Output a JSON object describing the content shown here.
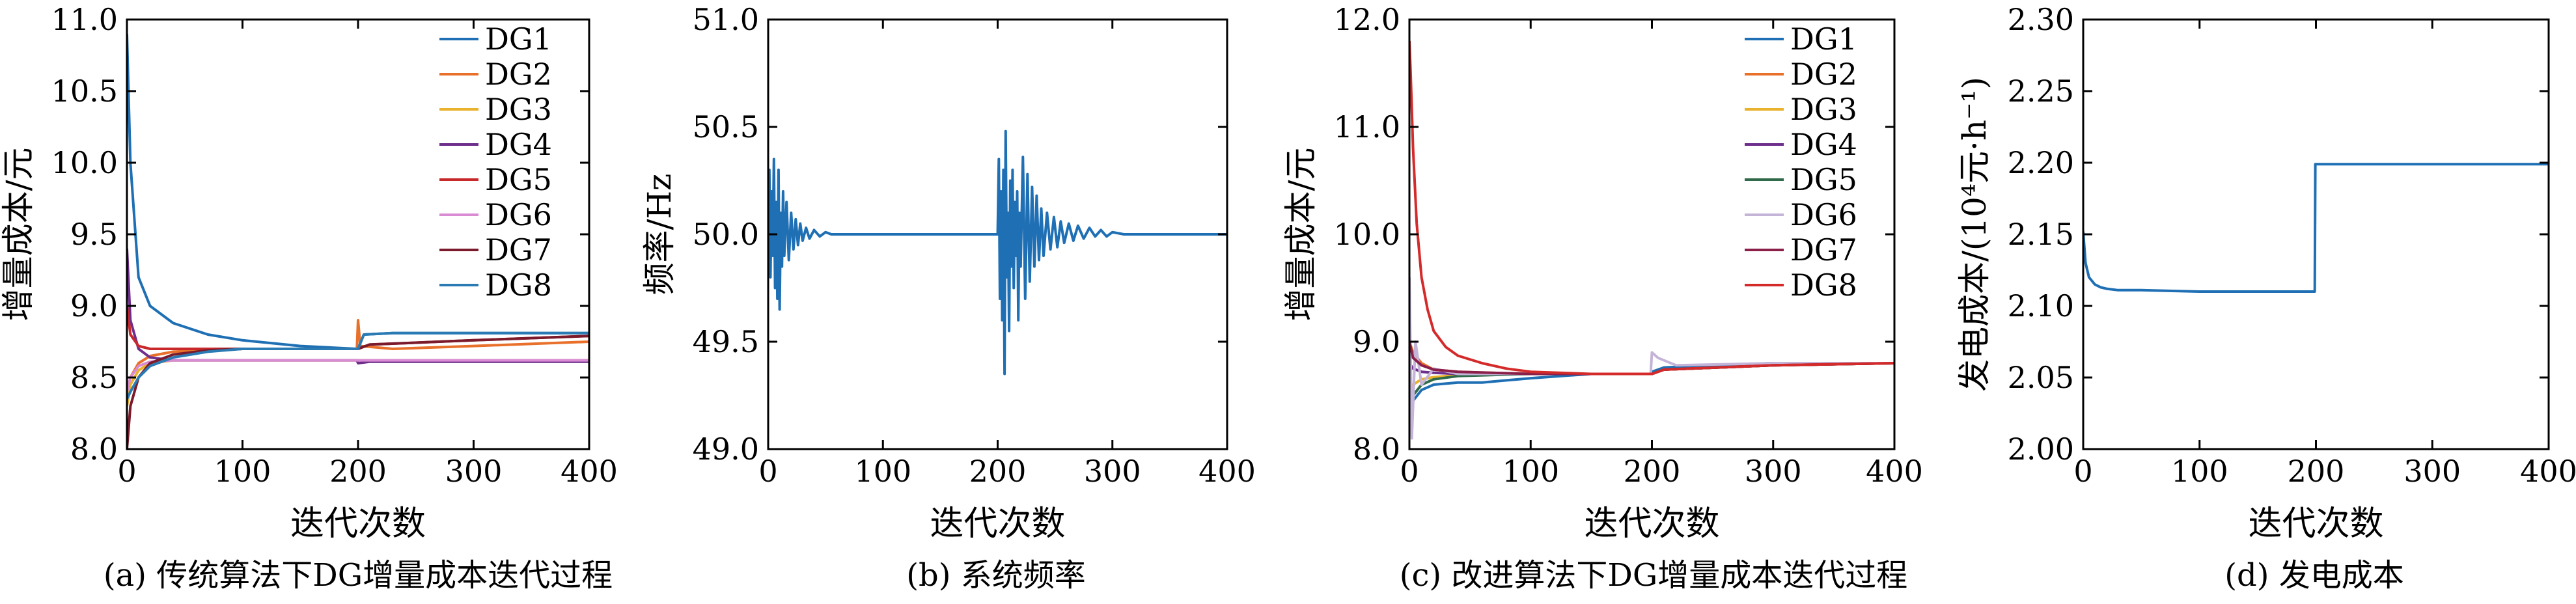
{
  "chart_data": [
    {
      "type": "line",
      "caption": "(a) 传统算法下DG增量成本迭代过程",
      "xlabel": "迭代次数",
      "ylabel": "增量成本/元",
      "xlim": [
        0,
        400
      ],
      "ylim": [
        8.0,
        11.0
      ],
      "xticks": [
        "0",
        "100",
        "200",
        "300",
        "400"
      ],
      "yticks": [
        "8.0",
        "8.5",
        "9.0",
        "9.5",
        "10.0",
        "10.5",
        "11.0"
      ],
      "legend_position": "top-right",
      "series": [
        {
          "name": "DG1",
          "color": "#1f6fb4",
          "x": [
            0,
            3,
            10,
            20,
            40,
            70,
            100,
            150,
            199,
            200,
            205,
            230,
            300,
            400
          ],
          "y": [
            10.9,
            10.0,
            9.2,
            9.0,
            8.88,
            8.8,
            8.76,
            8.72,
            8.7,
            8.7,
            8.8,
            8.81,
            8.81,
            8.81
          ]
        },
        {
          "name": "DG2",
          "color": "#e8702a",
          "x": [
            0,
            3,
            10,
            20,
            40,
            70,
            100,
            150,
            199,
            200,
            202,
            230,
            300,
            400
          ],
          "y": [
            8.4,
            8.5,
            8.6,
            8.65,
            8.68,
            8.69,
            8.7,
            8.7,
            8.7,
            8.9,
            8.72,
            8.7,
            8.72,
            8.75
          ]
        },
        {
          "name": "DG3",
          "color": "#e9b22c",
          "x": [
            0,
            3,
            10,
            20,
            40,
            100,
            199,
            200,
            210,
            300,
            400
          ],
          "y": [
            8.3,
            8.45,
            8.55,
            8.6,
            8.62,
            8.62,
            8.62,
            8.62,
            8.62,
            8.62,
            8.62
          ]
        },
        {
          "name": "DG4",
          "color": "#6e2f8c",
          "x": [
            0,
            3,
            10,
            20,
            40,
            100,
            199,
            200,
            210,
            300,
            400
          ],
          "y": [
            9.4,
            8.9,
            8.7,
            8.64,
            8.62,
            8.62,
            8.62,
            8.6,
            8.61,
            8.61,
            8.61
          ]
        },
        {
          "name": "DG5",
          "color": "#c8282a",
          "x": [
            0,
            3,
            10,
            20,
            40,
            70,
            100,
            150,
            199,
            200,
            210,
            300,
            400
          ],
          "y": [
            9.0,
            8.8,
            8.72,
            8.7,
            8.7,
            8.7,
            8.7,
            8.7,
            8.7,
            8.7,
            8.73,
            8.76,
            8.79
          ]
        },
        {
          "name": "DG6",
          "color": "#d98bd3",
          "x": [
            0,
            3,
            10,
            20,
            40,
            100,
            199,
            200,
            210,
            300,
            400
          ],
          "y": [
            8.4,
            8.5,
            8.58,
            8.61,
            8.62,
            8.62,
            8.62,
            8.62,
            8.62,
            8.62,
            8.62
          ]
        },
        {
          "name": "DG7",
          "color": "#7a1a2a",
          "x": [
            0,
            3,
            10,
            20,
            40,
            70,
            100,
            150,
            199,
            200,
            210,
            300,
            400
          ],
          "y": [
            8.0,
            8.3,
            8.5,
            8.6,
            8.66,
            8.69,
            8.7,
            8.7,
            8.7,
            8.7,
            8.73,
            8.76,
            8.79
          ]
        },
        {
          "name": "DG8",
          "color": "#2a7ab4",
          "x": [
            0,
            3,
            10,
            20,
            40,
            70,
            100,
            150,
            199,
            200,
            205,
            230,
            300,
            400
          ],
          "y": [
            8.35,
            8.4,
            8.5,
            8.58,
            8.64,
            8.68,
            8.7,
            8.7,
            8.7,
            8.7,
            8.8,
            8.81,
            8.81,
            8.81
          ]
        }
      ]
    },
    {
      "type": "line",
      "caption": "(b) 系统频率",
      "xlabel": "迭代次数",
      "ylabel": "频率/Hz",
      "xlim": [
        0,
        400
      ],
      "ylim": [
        49.0,
        51.0
      ],
      "xticks": [
        "0",
        "100",
        "200",
        "300",
        "400"
      ],
      "yticks": [
        "49.0",
        "49.5",
        "50.0",
        "50.5",
        "51.0"
      ],
      "series": [
        {
          "color": "#1f6fb4",
          "x": [
            0,
            1,
            2,
            3,
            4,
            5,
            6,
            7,
            8,
            9,
            10,
            11,
            12,
            13,
            14,
            16,
            18,
            20,
            22,
            24,
            26,
            28,
            30,
            33,
            36,
            40,
            45,
            50,
            55,
            60,
            80,
            100,
            150,
            199,
            200,
            201,
            202,
            203,
            204,
            205,
            206,
            207,
            208,
            209,
            210,
            211,
            212,
            213,
            214,
            215,
            216,
            217,
            218,
            219,
            220,
            222,
            224,
            226,
            228,
            230,
            232,
            234,
            236,
            238,
            240,
            243,
            246,
            249,
            252,
            255,
            258,
            262,
            266,
            270,
            275,
            280,
            285,
            290,
            295,
            300,
            310,
            320,
            330,
            350,
            400
          ],
          "y": [
            50.0,
            50.3,
            49.8,
            50.2,
            49.9,
            50.35,
            49.75,
            50.15,
            49.7,
            50.3,
            49.65,
            50.1,
            49.85,
            50.2,
            49.9,
            50.15,
            49.88,
            50.1,
            49.93,
            50.07,
            49.95,
            50.05,
            49.97,
            50.03,
            49.98,
            50.02,
            49.99,
            50.01,
            50.0,
            50.0,
            50.0,
            50.0,
            50.0,
            50.0,
            50.0,
            50.35,
            49.7,
            50.2,
            49.6,
            50.3,
            49.35,
            50.48,
            49.8,
            50.1,
            49.55,
            50.25,
            49.85,
            50.3,
            49.75,
            50.15,
            49.9,
            50.2,
            49.6,
            50.1,
            49.85,
            50.36,
            49.7,
            50.28,
            49.78,
            50.22,
            49.85,
            50.18,
            49.88,
            50.12,
            49.9,
            50.1,
            49.93,
            50.08,
            49.94,
            50.06,
            49.96,
            50.05,
            49.97,
            50.04,
            49.98,
            50.03,
            49.99,
            50.02,
            49.99,
            50.01,
            50.0,
            50.0,
            50.0,
            50.0,
            50.0
          ]
        }
      ]
    },
    {
      "type": "line",
      "caption": "(c) 改进算法下DG增量成本迭代过程",
      "xlabel": "迭代次数",
      "ylabel": "增量成本/元",
      "xlim": [
        0,
        400
      ],
      "ylim": [
        8.0,
        12.0
      ],
      "xticks": [
        "0",
        "100",
        "200",
        "300",
        "400"
      ],
      "yticks": [
        "8.0",
        "9.0",
        "10.0",
        "11.0",
        "12.0"
      ],
      "legend_position": "top-right",
      "series": [
        {
          "name": "DG1",
          "color": "#1f6fb4",
          "x": [
            0,
            3,
            10,
            20,
            40,
            60,
            80,
            100,
            150,
            199,
            200,
            210,
            250,
            300,
            350,
            400
          ],
          "y": [
            8.3,
            8.45,
            8.55,
            8.6,
            8.62,
            8.62,
            8.64,
            8.66,
            8.7,
            8.7,
            8.72,
            8.76,
            8.78,
            8.8,
            8.8,
            8.8
          ]
        },
        {
          "name": "DG2",
          "color": "#e8702a",
          "x": [
            0,
            3,
            10,
            20,
            40,
            100,
            199,
            200,
            210,
            300,
            400
          ],
          "y": [
            9.0,
            8.9,
            8.8,
            8.74,
            8.72,
            8.7,
            8.7,
            8.7,
            8.74,
            8.78,
            8.8
          ]
        },
        {
          "name": "DG3",
          "color": "#e9b22c",
          "x": [
            0,
            3,
            10,
            20,
            40,
            100,
            199,
            200,
            210,
            300,
            400
          ],
          "y": [
            8.5,
            8.6,
            8.65,
            8.67,
            8.69,
            8.7,
            8.7,
            8.7,
            8.74,
            8.78,
            8.8
          ]
        },
        {
          "name": "DG4",
          "color": "#6e2f8c",
          "x": [
            0,
            3,
            10,
            20,
            40,
            100,
            199,
            200,
            210,
            300,
            400
          ],
          "y": [
            8.8,
            8.75,
            8.72,
            8.71,
            8.7,
            8.7,
            8.7,
            8.7,
            8.74,
            8.78,
            8.8
          ]
        },
        {
          "name": "DG5",
          "color": "#2f6b4a",
          "x": [
            0,
            3,
            10,
            20,
            40,
            100,
            199,
            200,
            210,
            300,
            400
          ],
          "y": [
            8.4,
            8.5,
            8.6,
            8.65,
            8.68,
            8.7,
            8.7,
            8.7,
            8.74,
            8.78,
            8.8
          ]
        },
        {
          "name": "DG6",
          "color": "#c4b4d8",
          "x": [
            0,
            2,
            5,
            10,
            20,
            40,
            100,
            199,
            200,
            205,
            220,
            300,
            400
          ],
          "y": [
            9.6,
            8.1,
            9.0,
            8.6,
            8.75,
            8.7,
            8.7,
            8.7,
            8.9,
            8.85,
            8.78,
            8.8,
            8.8
          ]
        },
        {
          "name": "DG7",
          "color": "#8a1f4a",
          "x": [
            0,
            3,
            10,
            20,
            40,
            100,
            199,
            200,
            210,
            300,
            400
          ],
          "y": [
            9.0,
            8.85,
            8.78,
            8.74,
            8.72,
            8.7,
            8.7,
            8.7,
            8.74,
            8.78,
            8.8
          ]
        },
        {
          "name": "DG8",
          "color": "#d42a2a",
          "x": [
            0,
            1,
            3,
            6,
            10,
            15,
            20,
            30,
            40,
            60,
            80,
            100,
            150,
            199,
            200,
            210,
            300,
            400
          ],
          "y": [
            11.8,
            11.5,
            10.8,
            10.1,
            9.6,
            9.3,
            9.1,
            8.95,
            8.87,
            8.8,
            8.75,
            8.72,
            8.7,
            8.7,
            8.7,
            8.74,
            8.78,
            8.8
          ]
        }
      ]
    },
    {
      "type": "line",
      "caption": "(d) 发电成本",
      "xlabel": "迭代次数",
      "ylabel": "发电成本/(10⁴元·h⁻¹)",
      "xlim": [
        0,
        400
      ],
      "ylim": [
        2.0,
        2.3
      ],
      "xticks": [
        "0",
        "100",
        "200",
        "300",
        "400"
      ],
      "yticks": [
        "2.00",
        "2.05",
        "2.10",
        "2.15",
        "2.20",
        "2.25",
        "2.30"
      ],
      "series": [
        {
          "color": "#1f6fb4",
          "x": [
            0,
            2,
            5,
            10,
            15,
            20,
            30,
            50,
            100,
            150,
            199,
            199.5,
            205,
            250,
            300,
            400
          ],
          "y": [
            2.152,
            2.13,
            2.12,
            2.115,
            2.113,
            2.112,
            2.111,
            2.111,
            2.11,
            2.11,
            2.11,
            2.199,
            2.199,
            2.199,
            2.199,
            2.199
          ]
        }
      ]
    }
  ]
}
